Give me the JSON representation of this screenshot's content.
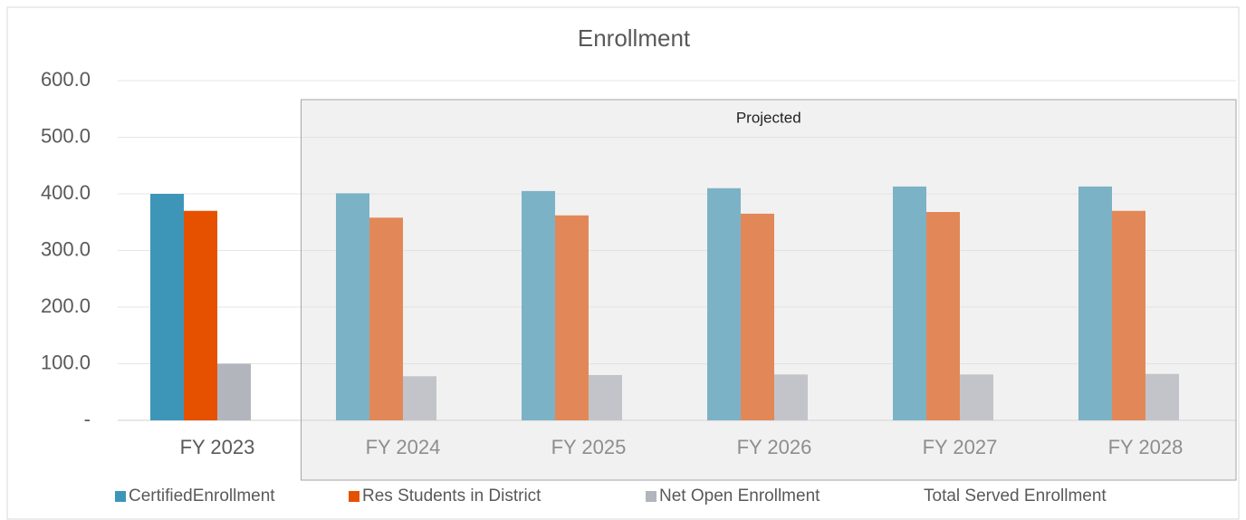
{
  "chart_data": {
    "type": "bar",
    "title": "Enrollment",
    "categories": [
      "FY 2023",
      "FY 2024",
      "FY 2025",
      "FY 2026",
      "FY 2027",
      "FY 2028"
    ],
    "series": [
      {
        "name": "CertifiedEnrollment",
        "color": "#3d96b8",
        "values": [
          400,
          401,
          405,
          410,
          413,
          413
        ]
      },
      {
        "name": "Res Students in District",
        "color": "#e65100",
        "values": [
          370,
          358,
          362,
          365,
          368,
          370
        ]
      },
      {
        "name": "Net Open Enrollment",
        "color": "#b3b5bd",
        "values": [
          100,
          78,
          80,
          81,
          81,
          82
        ]
      },
      {
        "name": "Total Served Enrollment",
        "values": [
          null,
          null,
          null,
          null,
          null,
          null
        ]
      }
    ],
    "annotations": [
      "Projected"
    ],
    "ylim": [
      0,
      600
    ],
    "yticks": [
      {
        "value": 0,
        "label": "-"
      },
      {
        "value": 100,
        "label": "100.0"
      },
      {
        "value": 200,
        "label": "200.0"
      },
      {
        "value": 300,
        "label": "300.0"
      },
      {
        "value": 400,
        "label": "400.0"
      },
      {
        "value": 500,
        "label": "500.0"
      },
      {
        "value": 600,
        "label": "600.0"
      }
    ],
    "grid": true,
    "legend": "bottom"
  }
}
